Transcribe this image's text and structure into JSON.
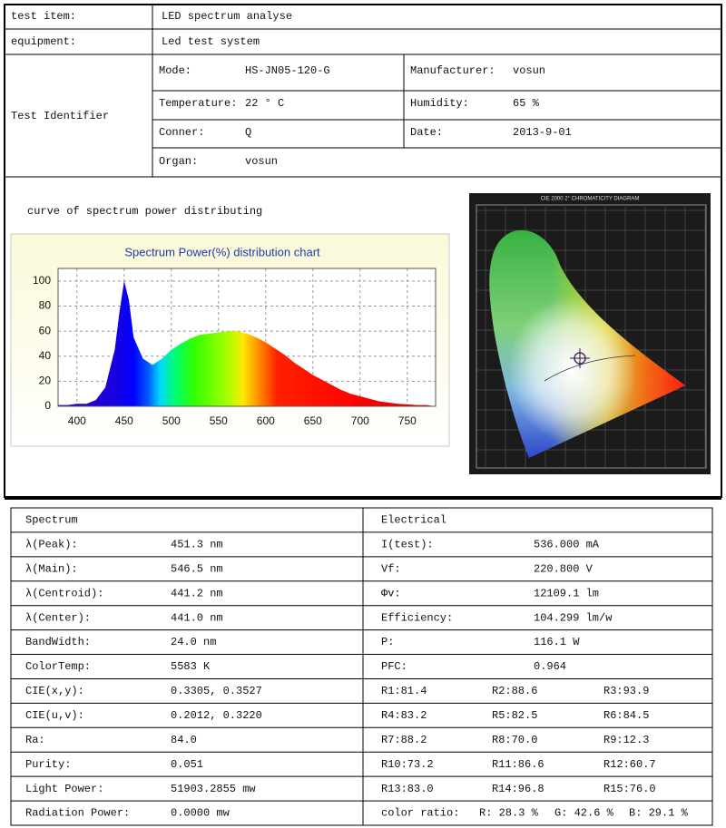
{
  "header": {
    "rows": [
      [
        "test item:",
        "LED spectrum analyse"
      ],
      [
        "equipment:",
        "Led test system"
      ]
    ]
  },
  "identifier": {
    "label": "Test Identifier",
    "rows": [
      [
        [
          "Mode:",
          "HS-JN05-120-G"
        ],
        [
          "Manufacturer:",
          "vosun"
        ]
      ],
      [
        [
          "Temperature:",
          "22 ° C"
        ],
        [
          "Humidity:",
          "65 %"
        ]
      ],
      [
        [
          "Conner:",
          "Q"
        ],
        [
          "Date:",
          "2013-9-01"
        ]
      ],
      [
        [
          "Organ:",
          "vosun"
        ]
      ]
    ]
  },
  "caption": "curve of spectrum power distributing",
  "chart_data": {
    "type": "area",
    "title": "Spectrum Power(%) distribution chart",
    "x": [
      380,
      390,
      400,
      410,
      420,
      430,
      440,
      445,
      450,
      455,
      460,
      470,
      480,
      490,
      500,
      510,
      520,
      530,
      540,
      550,
      560,
      570,
      580,
      590,
      600,
      610,
      620,
      630,
      640,
      650,
      660,
      670,
      680,
      690,
      700,
      710,
      720,
      730,
      740,
      750,
      760,
      770,
      780
    ],
    "values": [
      1,
      1,
      2,
      2,
      5,
      15,
      45,
      75,
      100,
      85,
      55,
      38,
      33,
      38,
      45,
      50,
      54,
      57,
      58,
      59,
      60,
      60,
      58,
      55,
      51,
      46,
      41,
      35,
      30,
      25,
      21,
      17,
      13,
      10,
      8,
      6,
      4,
      3,
      2,
      1.5,
      1,
      1,
      0
    ],
    "xlim": [
      380,
      780
    ],
    "ylim": [
      0,
      110
    ],
    "xticks": [
      400,
      450,
      500,
      550,
      600,
      650,
      700,
      750
    ],
    "yticks": [
      0,
      20,
      40,
      60,
      80,
      100
    ],
    "grid": true
  },
  "cie_diagram": {
    "title": "CIE 2000 2° CHROMATICITY DIAGRAM"
  },
  "results": {
    "left_title": "Spectrum",
    "right_title": "Electrical",
    "left": [
      [
        "λ(Peak):",
        "451.3 nm"
      ],
      [
        "λ(Main):",
        "546.5 nm"
      ],
      [
        "λ(Centroid):",
        "441.2 nm"
      ],
      [
        "λ(Center):",
        "441.0 nm"
      ],
      [
        "BandWidth:",
        "24.0 nm"
      ],
      [
        "ColorTemp:",
        "5583 K"
      ],
      [
        "CIE(x,y):",
        "0.3305, 0.3527"
      ],
      [
        "CIE(u,v):",
        "0.2012, 0.3220"
      ],
      [
        "Ra:",
        "84.0"
      ],
      [
        "Purity:",
        "0.051"
      ],
      [
        "Light Power:",
        "51903.2855 mw"
      ],
      [
        "Radiation Power:",
        "0.0000 mw"
      ]
    ],
    "right": [
      [
        "I(test):",
        "536.000 mA"
      ],
      [
        "Vf:",
        "220.800 V"
      ],
      [
        "Φv:",
        "12109.1 lm"
      ],
      [
        "Efficiency:",
        "104.299 lm/w"
      ],
      [
        "P:",
        "116.1 W"
      ],
      [
        "PFC:",
        "0.964"
      ],
      [
        "R1:81.4",
        "R2:88.6",
        "R3:93.9"
      ],
      [
        "R4:83.2",
        "R5:82.5",
        "R6:84.5"
      ],
      [
        "R7:88.2",
        "R8:70.0",
        "R9:12.3"
      ],
      [
        "R10:73.2",
        "R11:86.6",
        "R12:60.7"
      ],
      [
        "R13:83.0",
        "R14:96.8",
        "R15:76.0"
      ],
      [
        "color ratio:",
        "R: 28.3 %",
        "G: 42.6 %",
        "B: 29.1 %"
      ]
    ]
  }
}
